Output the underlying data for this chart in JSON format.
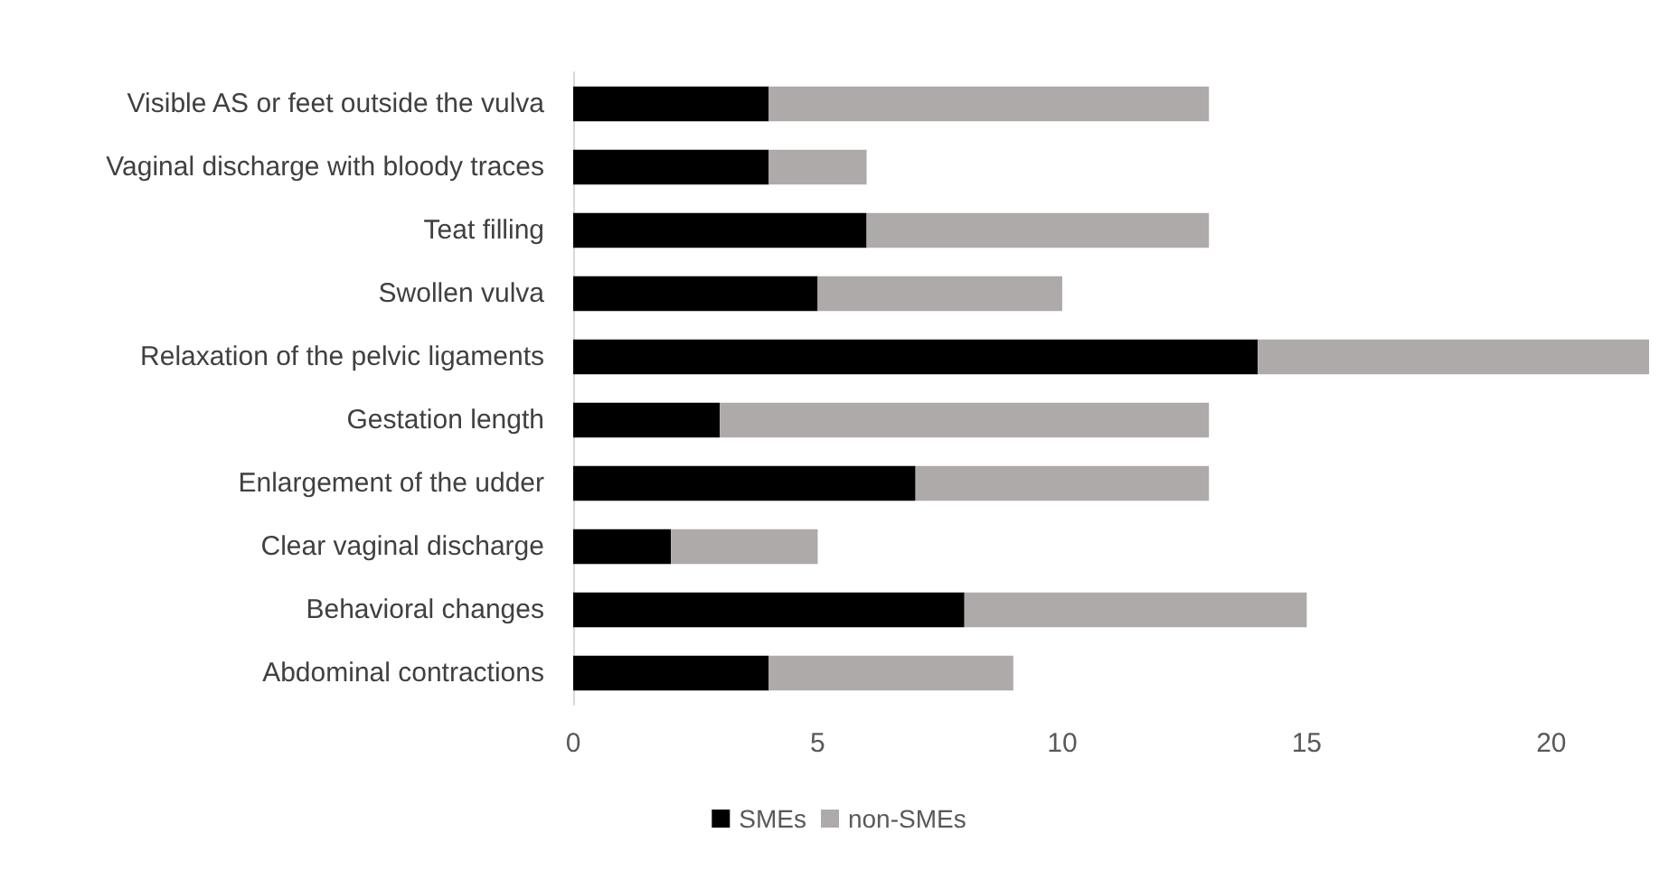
{
  "chart_data": {
    "type": "bar",
    "orientation": "horizontal",
    "stacked": true,
    "categories": [
      "Visible AS or feet outside the vulva",
      "Vaginal discharge with bloody traces",
      "Teat filling",
      "Swollen vulva",
      "Relaxation of the pelvic ligaments",
      "Gestation length",
      "Enlargement of the udder",
      "Clear vaginal discharge",
      "Behavioral changes",
      "Abdominal contractions"
    ],
    "series": [
      {
        "name": "SMEs",
        "color": "#000000",
        "values": [
          4,
          4,
          6,
          5,
          14,
          3,
          7,
          2,
          8,
          4
        ]
      },
      {
        "name": "non-SMEs",
        "color": "#aeaaaa",
        "values": [
          9,
          2,
          7,
          5,
          8,
          10,
          6,
          3,
          7,
          5
        ]
      }
    ],
    "xlim": [
      0,
      22
    ],
    "xticks": [
      0,
      5,
      10,
      15,
      20
    ],
    "grid": false,
    "legend": "bottom"
  }
}
